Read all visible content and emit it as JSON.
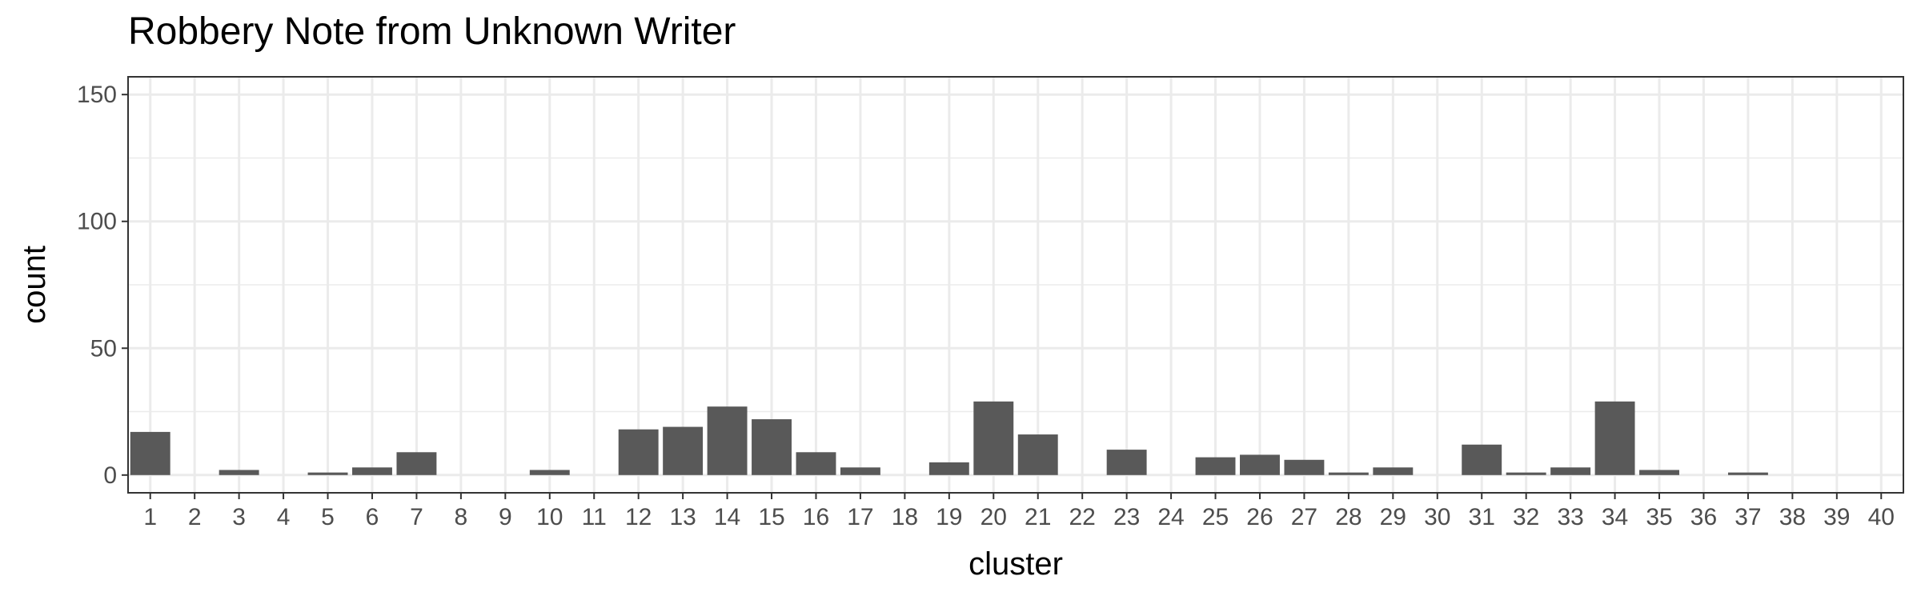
{
  "chart_data": {
    "type": "bar",
    "title": "Robbery Note from Unknown Writer",
    "xlabel": "cluster",
    "ylabel": "count",
    "ylim": [
      -7,
      157
    ],
    "yticks": [
      0,
      50,
      100,
      150
    ],
    "grid": true,
    "bar_color": "#595959",
    "grid_color": "#ebebeb",
    "categories": [
      "1",
      "2",
      "3",
      "4",
      "5",
      "6",
      "7",
      "8",
      "9",
      "10",
      "11",
      "12",
      "13",
      "14",
      "15",
      "16",
      "17",
      "18",
      "19",
      "20",
      "21",
      "22",
      "23",
      "24",
      "25",
      "26",
      "27",
      "28",
      "29",
      "30",
      "31",
      "32",
      "33",
      "34",
      "35",
      "36",
      "37",
      "38",
      "39",
      "40"
    ],
    "values": [
      17,
      0,
      2,
      0,
      1,
      3,
      9,
      0,
      0,
      2,
      0,
      18,
      19,
      27,
      22,
      9,
      3,
      0,
      5,
      29,
      16,
      0,
      10,
      0,
      7,
      8,
      6,
      1,
      3,
      0,
      12,
      1,
      3,
      29,
      2,
      0,
      1,
      0,
      0,
      0
    ]
  }
}
